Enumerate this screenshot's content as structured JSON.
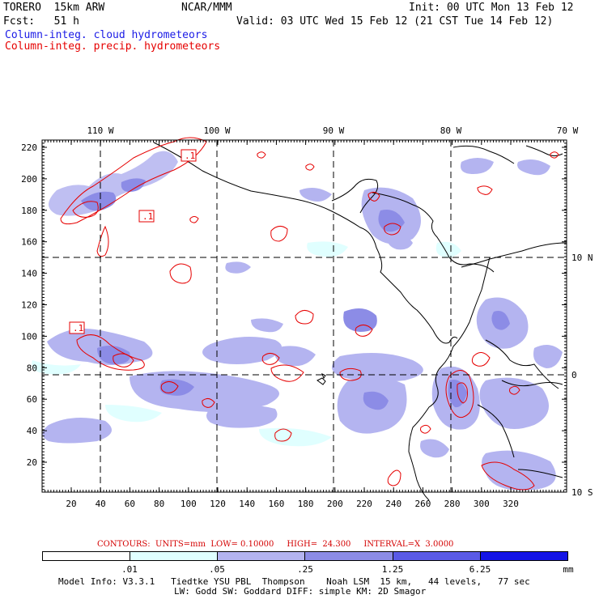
{
  "header": {
    "model": "TORERO  15km ARW",
    "center": "NCAR/MMM",
    "init": "Init: 00 UTC Mon 13 Feb 12",
    "fcst": "Fcst:   51 h",
    "valid": "Valid: 03 UTC Wed 15 Feb 12 (21 CST Tue 14 Feb 12)",
    "field1": "Column-integ. cloud hydrometeors",
    "field2": "Column-integ. precip. hydrometeors"
  },
  "colors": {
    "cloud_fill": [
      "#e0ffff",
      "#b4b4f0",
      "#8c8ce6",
      "#5a5ae6",
      "#1414e6"
    ],
    "precip_contour": "#e60000",
    "field1": "#1a1ae6",
    "field2": "#e60000"
  },
  "top_axis": [
    "110 W",
    "100 W",
    "90 W",
    "80 W",
    "70 W"
  ],
  "right_axis": [
    "10 N",
    "0",
    "10 S"
  ],
  "left_axis": [
    "220",
    "200",
    "180",
    "160",
    "140",
    "120",
    "100",
    "80",
    "60",
    "40",
    "20"
  ],
  "bottom_axis": [
    "20",
    "40",
    "60",
    "80",
    "100",
    "120",
    "140",
    "160",
    "180",
    "200",
    "220",
    "240",
    "260",
    "280",
    "300",
    "320"
  ],
  "contour_labels": [
    ".1",
    ".1",
    ".1"
  ],
  "contour_info": {
    "contours": "CONTOURS:",
    "units": "UNITS=mm",
    "low": "LOW= 0.10000",
    "high": "HIGH=  24.300",
    "interval": "INTERVAL=X  3.0000"
  },
  "colorbar": {
    "labels": [
      ".01",
      ".05",
      ".25",
      "1.25",
      "6.25"
    ],
    "unit": "mm"
  },
  "footer": {
    "line1": "Model Info: V3.3.1   Tiedtke YSU PBL  Thompson    Noah LSM  15 km,   44 levels,   77 sec",
    "line2": "LW: Godd SW: Goddard DIFF: simple KM: 2D Smagor"
  }
}
